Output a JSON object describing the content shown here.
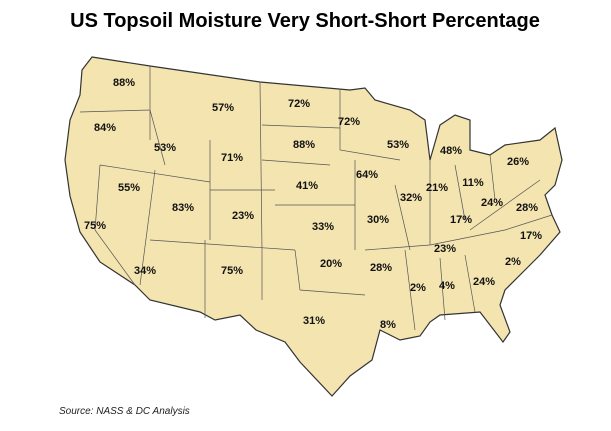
{
  "title": "US Topsoil Moisture Very Short-Short Percentage",
  "source": "Source: NASS & DC Analysis",
  "regions": {
    "values": [
      88,
      84,
      53,
      57,
      72,
      72,
      53,
      48,
      88,
      71,
      55,
      75,
      83,
      23,
      41,
      64,
      32,
      21,
      11,
      26,
      33,
      30,
      17,
      24,
      28,
      17,
      23,
      34,
      75,
      20,
      28,
      31,
      8,
      2,
      4,
      24,
      2
    ],
    "value_labels": [
      "88%",
      "84%",
      "53%",
      "57%",
      "72%",
      "72%",
      "53%",
      "48%",
      "88%",
      "71%",
      "55%",
      "75%",
      "83%",
      "23%",
      "41%",
      "64%",
      "32%",
      "21%",
      "11%",
      "26%",
      "33%",
      "30%",
      "17%",
      "24%",
      "28%",
      "17%",
      "23%",
      "34%",
      "75%",
      "20%",
      "28%",
      "31%",
      "8%",
      "2%",
      "4%",
      "24%",
      "2%"
    ]
  }
}
